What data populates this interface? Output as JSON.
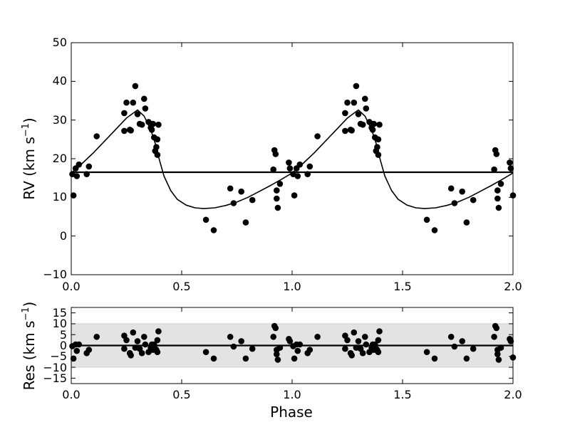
{
  "chart_data": [
    {
      "type": "scatter",
      "title": "",
      "xlabel": "",
      "ylabel": "RV (km s",
      "ylabel_exponent": "−1",
      "ylabel_close": ")",
      "xlim": [
        0.0,
        2.0
      ],
      "ylim": [
        -10,
        50
      ],
      "xticks": [
        "0.0",
        "0.5",
        "1.0",
        "1.5",
        "2.0"
      ],
      "yticks": [
        "−10",
        "0",
        "10",
        "20",
        "30",
        "40",
        "50"
      ],
      "grid": false,
      "colors": {
        "points": "#000000",
        "model": "#000000",
        "systemic": "#000000"
      },
      "systemic_velocity": 16.5,
      "model_curve": {
        "x": [
          0.0,
          0.05,
          0.1,
          0.15,
          0.2,
          0.25,
          0.3,
          0.33,
          0.36,
          0.38,
          0.4,
          0.42,
          0.45,
          0.48,
          0.52,
          0.56,
          0.6,
          0.65,
          0.7,
          0.75,
          0.8,
          0.85,
          0.9,
          0.95,
          1.0,
          1.05,
          1.1,
          1.15,
          1.2,
          1.25,
          1.3,
          1.33,
          1.36,
          1.38,
          1.4,
          1.42,
          1.45,
          1.48,
          1.52,
          1.56,
          1.6,
          1.65,
          1.7,
          1.75,
          1.8,
          1.85,
          1.9,
          1.95,
          2.0
        ],
        "y": [
          16.3,
          18.8,
          21.5,
          24.5,
          27.5,
          30.5,
          32.6,
          31.0,
          27.5,
          24.0,
          19.5,
          15.5,
          11.8,
          9.5,
          8.0,
          7.3,
          7.1,
          7.3,
          7.9,
          8.8,
          10.0,
          11.5,
          13.0,
          14.6,
          16.3,
          18.8,
          21.5,
          24.5,
          27.5,
          30.5,
          32.6,
          31.0,
          27.5,
          24.0,
          19.5,
          15.5,
          11.8,
          9.5,
          8.0,
          7.3,
          7.1,
          7.3,
          7.9,
          8.8,
          10.0,
          11.5,
          13.0,
          14.6,
          16.3
        ]
      },
      "observations": {
        "x": [
          0.005,
          0.01,
          0.02,
          0.025,
          0.035,
          0.07,
          0.08,
          0.115,
          0.24,
          0.24,
          0.25,
          0.265,
          0.27,
          0.28,
          0.29,
          0.3,
          0.31,
          0.32,
          0.33,
          0.335,
          0.35,
          0.36,
          0.365,
          0.37,
          0.375,
          0.38,
          0.385,
          0.39,
          0.39,
          0.395,
          0.61,
          0.645,
          0.72,
          0.735,
          0.77,
          0.79,
          0.82,
          0.915,
          0.92,
          0.925,
          0.93,
          0.93,
          0.935,
          0.945,
          0.985,
          0.99,
          1.005,
          1.01,
          1.02,
          1.025,
          1.035,
          1.07,
          1.08,
          1.115,
          1.24,
          1.24,
          1.25,
          1.265,
          1.27,
          1.28,
          1.29,
          1.3,
          1.31,
          1.32,
          1.33,
          1.335,
          1.35,
          1.36,
          1.365,
          1.37,
          1.375,
          1.38,
          1.385,
          1.39,
          1.39,
          1.395,
          1.61,
          1.645,
          1.72,
          1.735,
          1.77,
          1.79,
          1.82,
          1.915,
          1.92,
          1.925,
          1.93,
          1.93,
          1.935,
          1.945,
          1.985,
          1.99,
          2.0
        ],
        "y": [
          16.0,
          10.5,
          17.5,
          15.5,
          18.5,
          16.0,
          18.0,
          25.8,
          31.8,
          27.2,
          34.5,
          27.5,
          27.3,
          34.5,
          38.8,
          31.5,
          29.0,
          28.8,
          35.5,
          33.0,
          29.5,
          28.0,
          27.5,
          29.0,
          25.5,
          22.0,
          23.0,
          21.0,
          25.0,
          28.8,
          4.2,
          1.5,
          12.3,
          8.5,
          11.5,
          3.5,
          9.3,
          17.2,
          22.2,
          21.2,
          11.8,
          9.7,
          7.3,
          13.5,
          19.0,
          17.5,
          16.0,
          10.5,
          17.5,
          15.5,
          18.5,
          16.0,
          18.0,
          25.8,
          31.8,
          27.2,
          34.5,
          27.5,
          27.3,
          34.5,
          38.8,
          31.5,
          29.0,
          28.8,
          35.5,
          33.0,
          29.5,
          28.0,
          27.5,
          29.0,
          25.5,
          22.0,
          23.0,
          21.0,
          25.0,
          28.8,
          4.2,
          1.5,
          12.3,
          8.5,
          11.5,
          3.5,
          9.3,
          17.2,
          22.2,
          21.2,
          11.8,
          9.7,
          7.3,
          13.5,
          19.0,
          17.5,
          10.5
        ]
      }
    },
    {
      "type": "scatter",
      "title": "",
      "xlabel": "Phase",
      "ylabel": "Res (km s",
      "ylabel_exponent": "−1",
      "ylabel_close": ")",
      "xlim": [
        0.0,
        2.0
      ],
      "ylim": [
        -17.5,
        17.5
      ],
      "xticks": [
        "0.0",
        "0.5",
        "1.0",
        "1.5",
        "2.0"
      ],
      "yticks": [
        "−15",
        "−10",
        "−5",
        "0",
        "5",
        "10",
        "15"
      ],
      "grid": false,
      "shaded_band": {
        "from": -10,
        "to": 10,
        "color": "#e3e3e3"
      },
      "zero_line": 0,
      "colors": {
        "points": "#000000",
        "zero_line": "#000000"
      },
      "residuals": {
        "x": [
          0.005,
          0.01,
          0.02,
          0.025,
          0.035,
          0.07,
          0.08,
          0.115,
          0.24,
          0.24,
          0.25,
          0.265,
          0.27,
          0.28,
          0.29,
          0.3,
          0.31,
          0.32,
          0.33,
          0.335,
          0.35,
          0.36,
          0.365,
          0.37,
          0.375,
          0.38,
          0.385,
          0.39,
          0.39,
          0.395,
          0.61,
          0.645,
          0.72,
          0.735,
          0.77,
          0.79,
          0.82,
          0.915,
          0.92,
          0.925,
          0.93,
          0.93,
          0.935,
          0.945,
          0.985,
          0.99,
          1.005,
          1.01,
          1.02,
          1.025,
          1.035,
          1.07,
          1.08,
          1.115,
          1.24,
          1.24,
          1.25,
          1.265,
          1.27,
          1.28,
          1.29,
          1.3,
          1.31,
          1.32,
          1.33,
          1.335,
          1.35,
          1.36,
          1.365,
          1.37,
          1.375,
          1.38,
          1.385,
          1.39,
          1.39,
          1.395,
          1.61,
          1.645,
          1.72,
          1.735,
          1.77,
          1.79,
          1.82,
          1.915,
          1.92,
          1.925,
          1.93,
          1.93,
          1.935,
          1.945,
          1.985,
          1.99,
          2.0
        ],
        "y": [
          -0.3,
          -6.0,
          0.5,
          -2.5,
          0.5,
          -3.5,
          -2.0,
          4.0,
          4.5,
          -1.5,
          2.5,
          -3.5,
          -4.5,
          6.0,
          -1.0,
          2.0,
          -1.5,
          -3.5,
          4.0,
          0.5,
          -3.0,
          -1.0,
          0.5,
          -2.0,
          0.5,
          -1.5,
          -2.0,
          -3.0,
          2.5,
          6.5,
          -3.0,
          -6.0,
          4.0,
          -0.5,
          2.0,
          -6.0,
          -1.5,
          4.0,
          9.0,
          8.0,
          -2.0,
          -4.0,
          -6.5,
          -1.0,
          3.0,
          2.0,
          -0.3,
          -6.0,
          0.5,
          -2.5,
          0.5,
          -3.5,
          -2.0,
          4.0,
          4.5,
          -1.5,
          2.5,
          -3.5,
          -4.5,
          6.0,
          -1.0,
          2.0,
          -1.5,
          -3.5,
          4.0,
          0.5,
          -3.0,
          -1.0,
          0.5,
          -2.0,
          0.5,
          -1.5,
          -2.0,
          -3.0,
          2.5,
          6.5,
          -3.0,
          -6.0,
          4.0,
          -0.5,
          2.0,
          -6.0,
          -1.5,
          4.0,
          9.0,
          8.0,
          -2.0,
          -4.0,
          -6.5,
          -1.0,
          3.0,
          2.0,
          -5.5
        ]
      }
    }
  ]
}
